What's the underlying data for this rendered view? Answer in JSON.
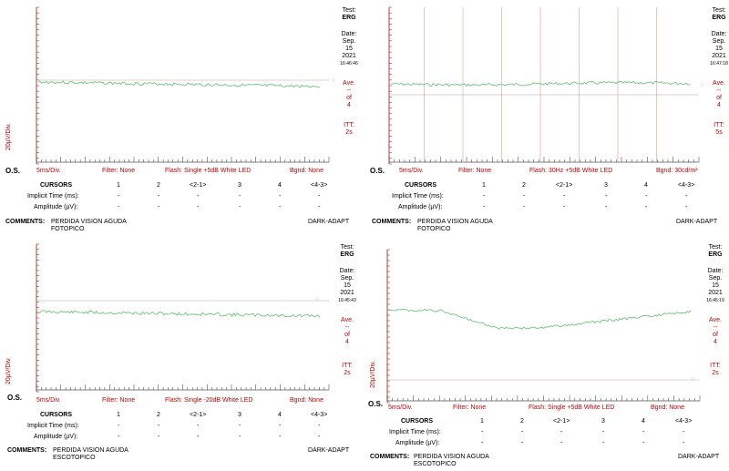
{
  "panels": [
    {
      "test_label": "Test:",
      "test_value": "ERG",
      "date_label": "Date:",
      "date_month": "Sep.",
      "date_day": "15",
      "date_year": "2021",
      "time": "16:46:46",
      "ave_label": "Ave.",
      "ave_dash": "--",
      "ave_of": "of",
      "ave_count": "4",
      "itt_label": "ITT:",
      "itt_value": "2s",
      "y_scale": "20µV/Div.",
      "eye": "O.S.",
      "x_scale": "5ms/Div.",
      "filter": "Filter: None",
      "flash": "Flash: Single +5dB White LED",
      "bgnd": "Bgnd: None",
      "cursors_label": "CURSORS",
      "cursor_cols": [
        "1",
        "2",
        "<2-1>",
        "3",
        "4",
        "<4-3>"
      ],
      "rows": [
        {
          "label": "Implicit Time (ms):",
          "values": [
            "-",
            "-",
            "-",
            "-",
            "-",
            "-"
          ]
        },
        {
          "label": "Amplitude (µV):",
          "values": [
            "-",
            "-",
            "-",
            "-",
            "-",
            "-"
          ]
        }
      ],
      "comments_label": "COMMENTS:",
      "comment_line1": "PERDIDA VISION AGUDA",
      "comment_line2": "FOTOPICO",
      "adapt": "DARK-ADAPT"
    },
    {
      "test_label": "Test:",
      "test_value": "ERG",
      "date_label": "Date:",
      "date_month": "Sep.",
      "date_day": "15",
      "date_year": "2021",
      "time": "16:47:18",
      "ave_label": "Ave.",
      "ave_dash": "--",
      "ave_of": "of",
      "ave_count": "4",
      "itt_label": "ITT:",
      "itt_value": "5s",
      "y_scale": "",
      "eye": "O.S.",
      "x_scale": "5ms/Div.",
      "filter": "Filter: None",
      "flash": "Flash: 30Hz +5dB White LED",
      "bgnd": "Bgnd: 30cd/m²",
      "cursors_label": "CURSORS",
      "cursor_cols": [
        "1",
        "2",
        "<2-1>",
        "3",
        "4",
        "<4-3>"
      ],
      "rows": [
        {
          "label": "Implicit Time (ms):",
          "values": [
            "-",
            "-",
            "-",
            "-",
            "-",
            "-"
          ]
        },
        {
          "label": "Amplitude (µV):",
          "values": [
            "-",
            "-",
            "-",
            "-",
            "-",
            "-"
          ]
        }
      ],
      "comments_label": "COMMENTS:",
      "comment_line1": "PERDIDA VISION AGUDA",
      "comment_line2": "FOTOPICO",
      "adapt": "DARK-ADAPT"
    },
    {
      "test_label": "Test:",
      "test_value": "ERG",
      "date_label": "Date:",
      "date_month": "Sep.",
      "date_day": "15",
      "date_year": "2021",
      "time": "16:45:43",
      "ave_label": "Ave.",
      "ave_dash": "--",
      "ave_of": "of",
      "ave_count": "4",
      "itt_label": "ITT:",
      "itt_value": "2s",
      "y_scale": "20µV/Div.",
      "eye": "O.S.",
      "x_scale": "5ms/Div.",
      "filter": "Filter: None",
      "flash": "Flash: Single -20dB White LED",
      "bgnd": "Bgnd: None",
      "cursors_label": "CURSORS",
      "cursor_cols": [
        "1",
        "2",
        "<2-1>",
        "3",
        "4",
        "<4-3>"
      ],
      "rows": [
        {
          "label": "Implicit Time (ms):",
          "values": [
            "-",
            "-",
            "-",
            "-",
            "-",
            "-"
          ]
        },
        {
          "label": "Amplitude (µV):",
          "values": [
            "-",
            "-",
            "-",
            "-",
            "-",
            "-"
          ]
        }
      ],
      "comments_label": "COMMENTS:",
      "comment_line1": "PERDIDA VISION AGUDA",
      "comment_line2": "ESCOTOPICO",
      "adapt": "DARK-ADAPT"
    },
    {
      "test_label": "Test:",
      "test_value": "ERG",
      "date_label": "Date:",
      "date_month": "Sep.",
      "date_day": "15",
      "date_year": "2021",
      "time": "16:45:19",
      "ave_label": "Ave.",
      "ave_dash": "--",
      "ave_of": "of",
      "ave_count": "4",
      "itt_label": "ITT:",
      "itt_value": "2s",
      "y_scale": "20µV/Div.",
      "eye": "O.S.",
      "x_scale": "5ms/Div.",
      "filter": "Filter: None",
      "flash": "Flash: Single +5dB White LED",
      "bgnd": "Bgnd: None",
      "cursors_label": "CURSORS",
      "cursor_cols": [
        "1",
        "2",
        "<2-1>",
        "3",
        "4",
        "<4-3>"
      ],
      "rows": [
        {
          "label": "Implicit Time (ms):",
          "values": [
            "-",
            "-",
            "-",
            "-",
            "-",
            "-"
          ]
        },
        {
          "label": "Amplitude (µV):",
          "values": [
            "-",
            "-",
            "-",
            "-",
            "-",
            "-"
          ]
        }
      ],
      "comments_label": "COMMENTS:",
      "comment_line1": "PERDIDA VISION AGUDA",
      "comment_line2": "ESCOTOPICO",
      "adapt": "DARK-ADAPT"
    }
  ],
  "colors": {
    "trace": "#5fbf6a",
    "axis": "#c00000",
    "grid": "#d8a0a0",
    "tick": "#333333",
    "baseline": "#c8a0a0"
  }
}
